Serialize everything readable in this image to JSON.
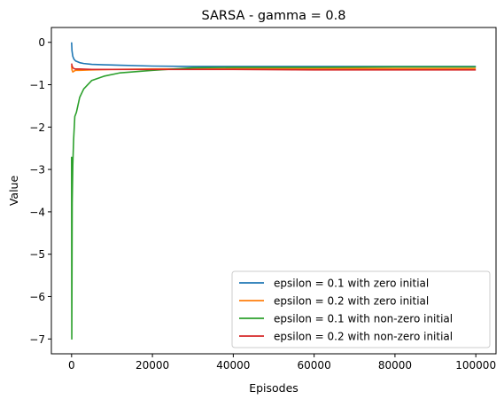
{
  "chart_data": {
    "type": "line",
    "title": "SARSA - gamma = 0.8",
    "xlabel": "Episodes",
    "ylabel": "Value",
    "xlim": [
      -5000,
      105000
    ],
    "ylim": [
      -7.35,
      0.35
    ],
    "x_ticks": [
      0,
      20000,
      40000,
      60000,
      80000,
      100000
    ],
    "x_tick_labels": [
      "0",
      "20000",
      "40000",
      "60000",
      "80000",
      "100000"
    ],
    "y_ticks": [
      0,
      -1,
      -2,
      -3,
      -4,
      -5,
      -6,
      -7
    ],
    "y_tick_labels": [
      "0",
      "−1",
      "−2",
      "−3",
      "−4",
      "−5",
      "−6",
      "−7"
    ],
    "grid": false,
    "legend_position": "lower-right",
    "series": [
      {
        "name": "epsilon = 0.1 with zero initial",
        "color": "#1f77b4",
        "x": [
          0,
          100,
          300,
          600,
          1000,
          2000,
          3000,
          5000,
          8000,
          12000,
          20000,
          30000,
          40000,
          60000,
          80000,
          100000
        ],
        "y": [
          0.0,
          -0.2,
          -0.33,
          -0.4,
          -0.44,
          -0.48,
          -0.5,
          -0.52,
          -0.53,
          -0.54,
          -0.56,
          -0.57,
          -0.57,
          -0.57,
          -0.57,
          -0.57
        ]
      },
      {
        "name": "epsilon = 0.2 with zero initial",
        "color": "#ff7f0e",
        "x": [
          0,
          100,
          300,
          600,
          1000,
          2000,
          5000,
          10000,
          20000,
          40000,
          60000,
          80000,
          100000
        ],
        "y": [
          -0.55,
          -0.65,
          -0.7,
          -0.68,
          -0.66,
          -0.66,
          -0.65,
          -0.64,
          -0.63,
          -0.62,
          -0.62,
          -0.62,
          -0.62
        ]
      },
      {
        "name": "epsilon = 0.1 with non-zero initial",
        "color": "#2ca02c",
        "x": [
          0,
          50,
          150,
          300,
          500,
          800,
          1200,
          2000,
          3000,
          5000,
          8000,
          12000,
          20000,
          30000,
          40000,
          60000,
          80000,
          100000
        ],
        "y": [
          -2.7,
          -7.0,
          -3.8,
          -2.9,
          -2.3,
          -1.75,
          -1.65,
          -1.3,
          -1.1,
          -0.9,
          -0.8,
          -0.72,
          -0.66,
          -0.6,
          -0.59,
          -0.59,
          -0.58,
          -0.58
        ]
      },
      {
        "name": "epsilon = 0.2 with non-zero initial",
        "color": "#d62728",
        "x": [
          0,
          100,
          300,
          600,
          1000,
          2000,
          5000,
          10000,
          20000,
          40000,
          60000,
          80000,
          100000
        ],
        "y": [
          -0.5,
          -0.55,
          -0.6,
          -0.62,
          -0.63,
          -0.63,
          -0.64,
          -0.64,
          -0.64,
          -0.64,
          -0.65,
          -0.65,
          -0.65
        ]
      }
    ]
  }
}
